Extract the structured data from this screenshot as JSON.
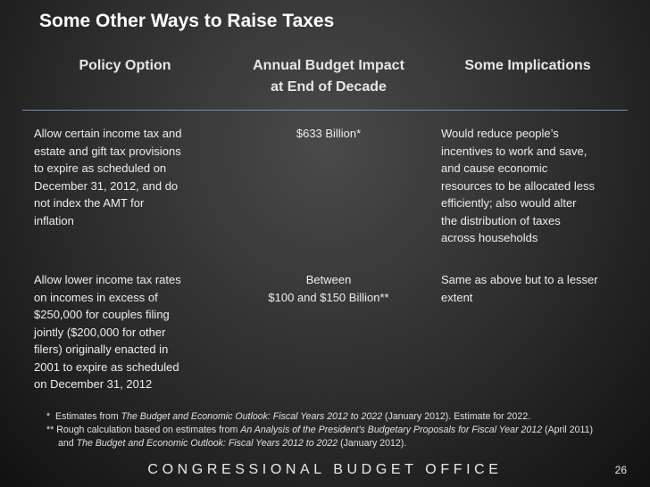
{
  "title": "Some Other Ways to Raise Taxes",
  "table": {
    "headers": [
      [
        "Policy Option"
      ],
      [
        "Annual Budget Impact",
        "at End of Decade"
      ],
      [
        "Some Implications"
      ]
    ],
    "rows": [
      [
        [
          "Allow certain income tax and",
          "estate and gift tax provisions",
          "to expire as scheduled on",
          "December 31, 2012, and do",
          "not index the AMT for",
          "inflation"
        ],
        [
          "$633 Billion*"
        ],
        [
          "Would reduce people’s",
          "incentives to work and save,",
          "and cause economic",
          "resources to be allocated less",
          "efficiently; also would alter",
          "the distribution of taxes",
          "across households"
        ]
      ],
      [
        [
          "Allow lower income tax rates",
          "on incomes in excess of",
          "$250,000 for couples filing",
          "jointly ($200,000 for other",
          "filers) originally enacted in",
          "2001 to expire as scheduled",
          "on December 31, 2012"
        ],
        [
          "Between",
          "$100 and $150 Billion**"
        ],
        [
          "Same as above but to a lesser",
          "extent"
        ]
      ]
    ]
  },
  "footnotes": [
    [
      [
        "*  Estimates from ",
        {
          "italic": "The Budget and Economic Outlook: Fiscal Years 2012 to 2022"
        },
        " (January 2012). Estimate for 2022."
      ]
    ],
    [
      [
        "** Rough calculation based on estimates from ",
        {
          "italic": "An Analysis of the President’s Budgetary Proposals for Fiscal Year 2012"
        },
        " (April 2011)"
      ],
      [
        "and ",
        {
          "italic": "The Budget and Economic Outlook: Fiscal Years 2012 to 2022"
        },
        " (January 2012)."
      ]
    ]
  ],
  "footer": {
    "organization": "CONGRESSIONAL BUDGET OFFICE",
    "page_number": "26"
  }
}
